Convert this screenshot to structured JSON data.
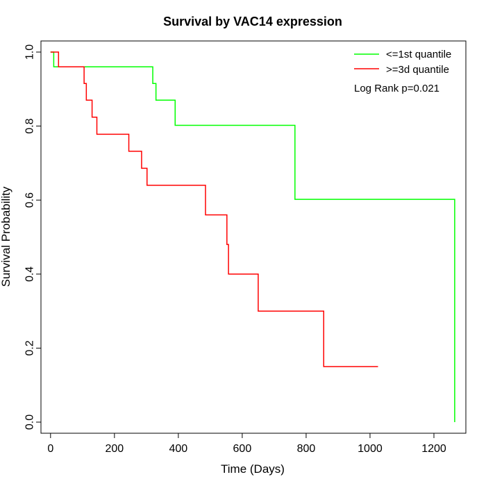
{
  "chart_data": {
    "type": "line",
    "title": "Survival by VAC14 expression",
    "xlabel": "Time (Days)",
    "ylabel": "Survival Probability",
    "xlim": [
      -30,
      1300
    ],
    "ylim": [
      -0.03,
      1.03
    ],
    "xticks": [
      0,
      200,
      400,
      600,
      800,
      1000,
      1200
    ],
    "yticks": [
      0.0,
      0.2,
      0.4,
      0.6,
      0.8,
      1.0
    ],
    "xtick_labels": [
      "0",
      "200",
      "400",
      "600",
      "800",
      "1000",
      "1200"
    ],
    "ytick_labels": [
      "0.0",
      "0.2",
      "0.4",
      "0.6",
      "0.8",
      "1.0"
    ],
    "grid": false,
    "legend_position": "top-right",
    "annotation": "Log Rank p=0.021",
    "series": [
      {
        "name": "<=1st quantile",
        "color": "#00ff00",
        "x": [
          0,
          10,
          320,
          330,
          390,
          765,
          1265
        ],
        "y": [
          1.0,
          0.96,
          0.915,
          0.87,
          0.802,
          0.602,
          0.0
        ]
      },
      {
        "name": ">=3d quantile",
        "color": "#ff0000",
        "x": [
          0,
          25,
          105,
          112,
          130,
          145,
          245,
          285,
          302,
          485,
          552,
          557,
          650,
          855,
          1025
        ],
        "y": [
          1.0,
          0.96,
          0.915,
          0.87,
          0.824,
          0.778,
          0.732,
          0.686,
          0.64,
          0.56,
          0.48,
          0.4,
          0.3,
          0.15,
          0.15
        ]
      }
    ]
  }
}
